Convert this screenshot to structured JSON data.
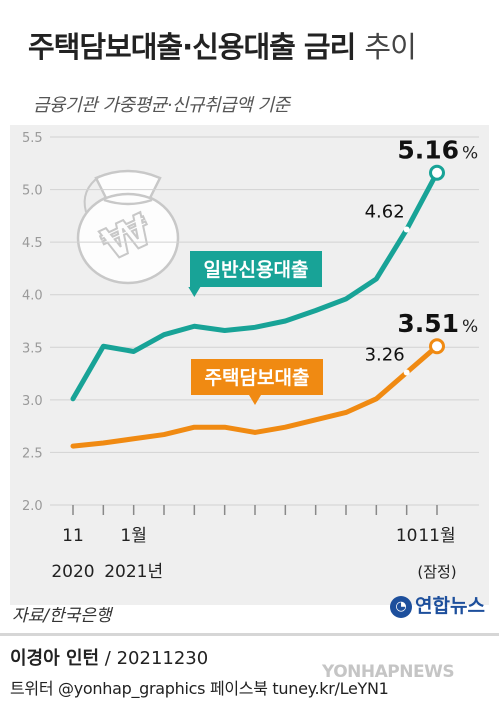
{
  "header": {
    "title_main": "주택담보대출·신용대출 금리",
    "title_tail": "추이",
    "subtitle": "금융기관 가중평균·신규취급액 기준"
  },
  "source": "자료/한국은행",
  "logo": "연합뉴스",
  "footer": {
    "byline_name": "이경아 인턴",
    "byline_rest": " / 20211230",
    "social": "트위터 @yonhap_graphics  페이스북 tuney.kr/LeYN1",
    "watermark": "YONHAPNEWS"
  },
  "colors": {
    "credit": "#18a397",
    "mortgage": "#f08a12",
    "background": "#efefef"
  },
  "chart_data": {
    "type": "line",
    "x": [
      "2020-11",
      "2020-12",
      "2021-01",
      "2021-02",
      "2021-03",
      "2021-04",
      "2021-05",
      "2021-06",
      "2021-07",
      "2021-08",
      "2021-09",
      "2021-10",
      "2021-11"
    ],
    "x_tick_labels": [
      {
        "x": "2020-11",
        "line1": "11",
        "line2": "2020"
      },
      {
        "x": "2021-01",
        "line1": "1월",
        "line2": "2021년"
      },
      {
        "x": "2021-10",
        "line1": "10",
        "line2": ""
      },
      {
        "x": "2021-11",
        "line1": "11월",
        "line2": "(잠정)"
      }
    ],
    "ylim": [
      2.0,
      5.5
    ],
    "yticks": [
      "2.0",
      "2.5",
      "3.0",
      "3.5",
      "4.0",
      "4.5",
      "5.0",
      "5.5"
    ],
    "grid": true,
    "series": [
      {
        "name": "일반신용대출",
        "color": "#18a397",
        "values": [
          3.01,
          3.51,
          3.46,
          3.62,
          3.7,
          3.66,
          3.69,
          3.75,
          3.85,
          3.96,
          4.15,
          4.62,
          5.16
        ]
      },
      {
        "name": "주택담보대출",
        "color": "#f08a12",
        "values": [
          2.56,
          2.59,
          2.63,
          2.67,
          2.74,
          2.74,
          2.69,
          2.74,
          2.81,
          2.88,
          3.01,
          3.26,
          3.51
        ]
      }
    ],
    "annotations": [
      {
        "series": 0,
        "index": 11,
        "text": "4.62"
      },
      {
        "series": 0,
        "index": 12,
        "value": "5.16",
        "unit": "%"
      },
      {
        "series": 1,
        "index": 11,
        "text": "3.26"
      },
      {
        "series": 1,
        "index": 12,
        "value": "3.51",
        "unit": "%"
      }
    ]
  }
}
